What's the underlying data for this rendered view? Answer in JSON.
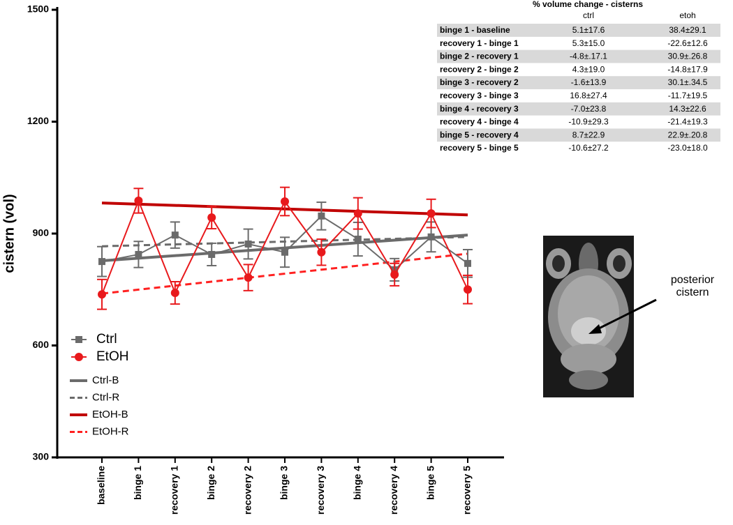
{
  "chart_data": {
    "type": "line",
    "y_label": "cistern (vol)",
    "categories": [
      "baseline",
      "binge 1",
      "recovery 1",
      "binge 2",
      "recovery 2",
      "binge 3",
      "recovery 3",
      "binge 4",
      "recovery 4",
      "binge 5",
      "recovery 5"
    ],
    "ylim": [
      300,
      1500
    ],
    "yticks": [
      300,
      600,
      900,
      1200,
      1500
    ],
    "series": [
      {
        "name": "Ctrl",
        "color": "#6b6b6b",
        "marker": "square",
        "values": [
          825,
          844,
          896,
          844,
          872,
          850,
          947,
          885,
          803,
          891,
          820
        ],
        "errors": [
          40,
          35,
          35,
          30,
          40,
          40,
          37,
          45,
          30,
          40,
          37
        ]
      },
      {
        "name": "EtOH",
        "color": "#e8191c",
        "marker": "circle",
        "values": [
          737,
          988,
          741,
          943,
          782,
          986,
          850,
          954,
          790,
          954,
          750
        ],
        "errors": [
          40,
          33,
          30,
          30,
          35,
          38,
          35,
          42,
          30,
          38,
          38
        ]
      }
    ],
    "trend_lines": [
      {
        "name": "Ctrl-B",
        "color": "#6b6b6b",
        "dashed": false,
        "start": 827,
        "end": 896
      },
      {
        "name": "Ctrl-R",
        "color": "#6b6b6b",
        "dashed": true,
        "start": 866,
        "end": 891
      },
      {
        "name": "EtOH-B",
        "color": "#c00000",
        "dashed": false,
        "start": 982,
        "end": 950
      },
      {
        "name": "EtOH-R",
        "color": "#ff2020",
        "dashed": true,
        "start": 739,
        "end": 846
      }
    ]
  },
  "table": {
    "title": "% volume change - cisterns",
    "columns": [
      "ctrl",
      "etoh"
    ],
    "rows": [
      [
        "binge 1 - baseline",
        "5.1±17.6",
        "38.4±29.1"
      ],
      [
        "recovery 1 - binge 1",
        "5.3±15.0",
        "-22.6±12.6"
      ],
      [
        "binge 2 - recovery 1",
        "-4.8±.17.1",
        "30.9±.26.8"
      ],
      [
        "recovery 2 - binge 2",
        "4.3±19.0",
        "-14.8±17.9"
      ],
      [
        "binge 3 - recovery 2",
        "-1.6±13.9",
        "30.1±.34.5"
      ],
      [
        "recovery 3 - binge 3",
        "16.8±27.4",
        "-11.7±19.5"
      ],
      [
        "binge 4 - recovery 3",
        "-7.0±23.8",
        "14.3±22.6"
      ],
      [
        "recovery 4 - binge 4",
        "-10.9±29.3",
        "-21.4±19.3"
      ],
      [
        "binge 5 - recovery 4",
        "8.7±22.9",
        "22.9±.20.8"
      ],
      [
        "recovery 5 - binge 5",
        "-10.6±27.2",
        "-23.0±18.0"
      ]
    ]
  },
  "image": {
    "annotation_line1": "posterior",
    "annotation_line2": "cistern"
  }
}
